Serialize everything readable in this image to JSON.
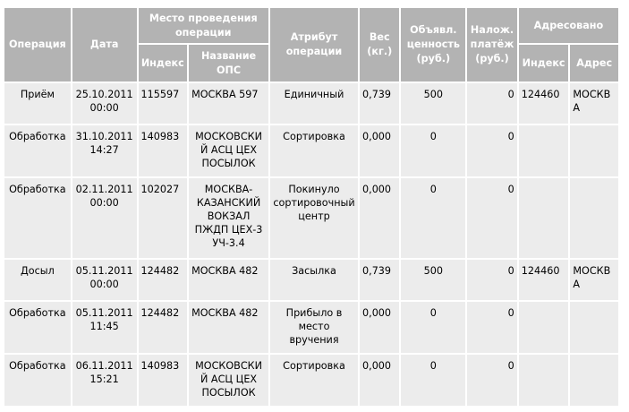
{
  "headers": {
    "operation": "Операция",
    "date": "Дата",
    "place": "Место проведения операции",
    "index": "Индекс",
    "ops_name": "Название ОПС",
    "attribute": "Атрибут операции",
    "weight": "Вес (кг.)",
    "declared_value": "Объявл. ценность (руб.)",
    "cod": "Налож. платёж (руб.)",
    "addressed": "Адресовано",
    "addr_index": "Индекс",
    "addr_address": "Адрес"
  },
  "rows": [
    {
      "operation": "Приём",
      "date": "25.10.2011 00:00",
      "index": "115597",
      "ops_name": "МОСКВА 597",
      "attribute": "Единичный",
      "weight": "0,739",
      "declared_value": "500",
      "cod": "0",
      "addr_index": "124460",
      "addr_address": "МОСКВА"
    },
    {
      "operation": "Обработка",
      "date": "31.10.2011 14:27",
      "index": "140983",
      "ops_name": "МОСКОВСКИЙ АСЦ ЦЕХ ПОСЫЛОК",
      "attribute": "Сортировка",
      "weight": "0,000",
      "declared_value": "0",
      "cod": "0",
      "addr_index": "",
      "addr_address": ""
    },
    {
      "operation": "Обработка",
      "date": "02.11.2011 00:00",
      "index": "102027",
      "ops_name": "МОСКВА-КАЗАНСКИЙ ВОКЗАЛ ПЖДП ЦЕХ-3 УЧ-3.4",
      "attribute": "Покинуло сортировочный центр",
      "weight": "0,000",
      "declared_value": "0",
      "cod": "0",
      "addr_index": "",
      "addr_address": ""
    },
    {
      "operation": "Досыл",
      "date": "05.11.2011 00:00",
      "index": "124482",
      "ops_name": "МОСКВА 482",
      "attribute": "Засылка",
      "weight": "0,739",
      "declared_value": "500",
      "cod": "0",
      "addr_index": "124460",
      "addr_address": "МОСКВА"
    },
    {
      "operation": "Обработка",
      "date": "05.11.2011 11:45",
      "index": "124482",
      "ops_name": "МОСКВА 482",
      "attribute": "Прибыло в место вручения",
      "weight": "0,000",
      "declared_value": "0",
      "cod": "0",
      "addr_index": "",
      "addr_address": ""
    },
    {
      "operation": "Обработка",
      "date": "06.11.2011 15:21",
      "index": "140983",
      "ops_name": "МОСКОВСКИЙ АСЦ ЦЕХ ПОСЫЛОК",
      "attribute": "Сортировка",
      "weight": "0,000",
      "declared_value": "0",
      "cod": "0",
      "addr_index": "",
      "addr_address": ""
    }
  ]
}
